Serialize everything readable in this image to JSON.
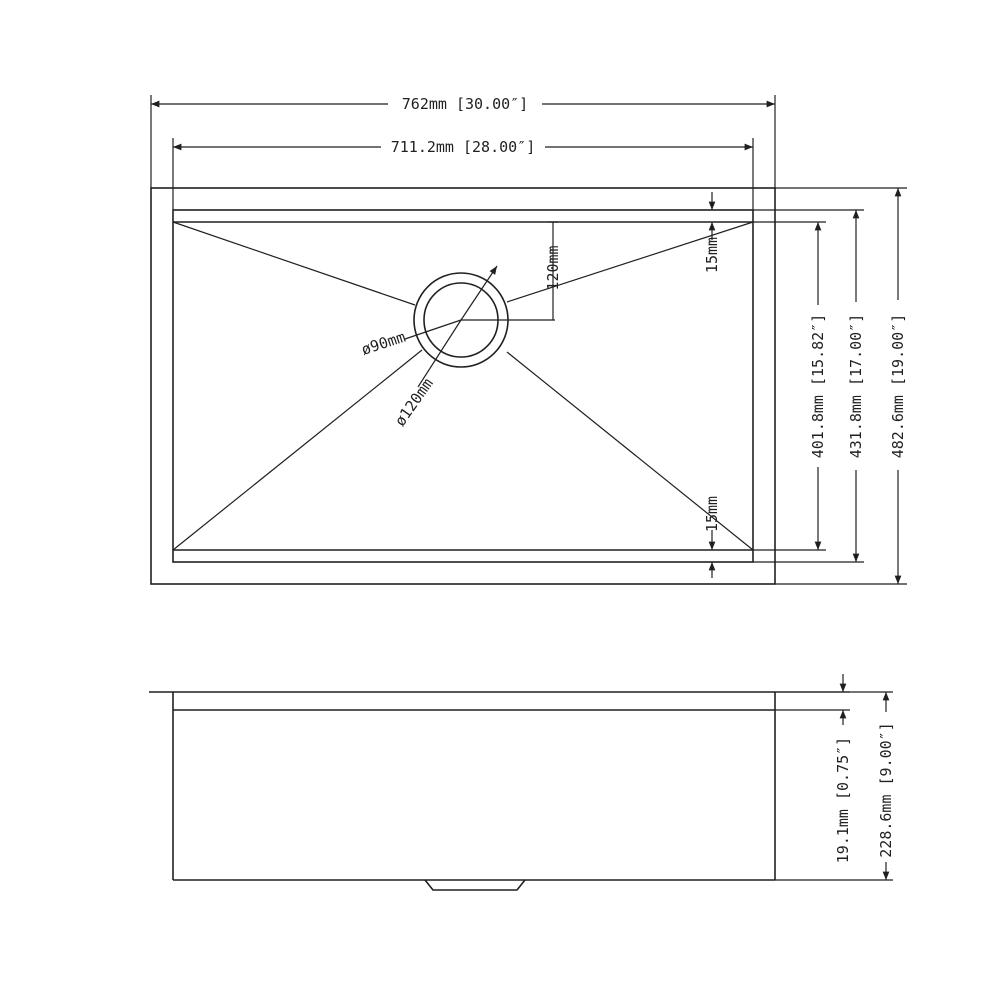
{
  "dimensions": {
    "overall_width": "762mm [30.00″]",
    "bowl_width": "711.2mm [28.00″]",
    "overall_depth": "482.6mm [19.00″]",
    "bowl_depth": "431.8mm [17.00″]",
    "inner_depth": "401.8mm [15.82″]",
    "ledge_top": "15mm",
    "ledge_bottom": "15mm",
    "drain_offset": "120mm",
    "drain_inner_dia": "ø90mm",
    "drain_outer_dia": "ø120mm",
    "flange_height": "19.1mm [0.75″]",
    "total_height": "228.6mm [9.00″]"
  }
}
